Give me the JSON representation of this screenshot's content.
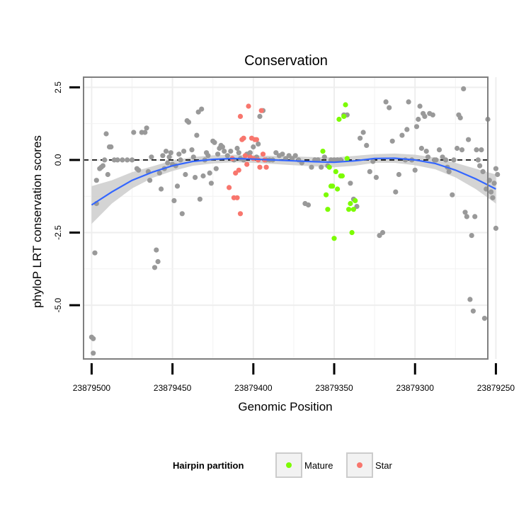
{
  "chart_data": {
    "type": "scatter",
    "title": "Conservation",
    "xlabel": "Genomic Position",
    "ylabel": "phyloP LRT conservation scores",
    "x_reversed": true,
    "xlim": [
      23879505,
      23879255
    ],
    "ylim": [
      -6.85,
      2.85
    ],
    "xticks": [
      23879500,
      23879450,
      23879400,
      23879350,
      23879300,
      23879250
    ],
    "xtick_labels": [
      "23879500",
      "23879450",
      "23879400",
      "23879350",
      "23879300",
      "23879250"
    ],
    "yticks": [
      2.5,
      0.0,
      -2.5,
      -5.0
    ],
    "ytick_labels": [
      "2.5",
      "0.0",
      "-2.5",
      "-5.0"
    ],
    "reference_line": {
      "y": 0,
      "style": "dashed"
    },
    "legend": {
      "title": "Hairpin partition",
      "position": "bottom",
      "entries": [
        {
          "label": "Mature",
          "color": "#7CFC00"
        },
        {
          "label": "Star",
          "color": "#F8766D"
        }
      ]
    },
    "colors": {
      "other": "#999999",
      "Mature": "#7CFC00",
      "Star": "#F8766D",
      "smooth": "#3366FF",
      "ribbon": "#CCCCCC"
    },
    "smooth": {
      "method": "loess",
      "x": [
        23879500,
        23879487.5,
        23879475,
        23879462.5,
        23879450,
        23879437.5,
        23879425,
        23879412.5,
        23879400,
        23879387.5,
        23879375,
        23879362.5,
        23879350,
        23879337.5,
        23879325,
        23879312.5,
        23879300,
        23879287.5,
        23879275,
        23879262.5,
        23879250
      ],
      "y": [
        -1.55,
        -1.1,
        -0.7,
        -0.42,
        -0.2,
        -0.05,
        0.02,
        0.05,
        0.03,
        0.0,
        -0.03,
        -0.06,
        -0.08,
        -0.03,
        0.05,
        0.06,
        0.0,
        -0.12,
        -0.35,
        -0.65,
        -1.0
      ],
      "lower": [
        -2.2,
        -1.5,
        -0.98,
        -0.62,
        -0.38,
        -0.2,
        -0.12,
        -0.08,
        -0.1,
        -0.14,
        -0.18,
        -0.22,
        -0.25,
        -0.2,
        -0.1,
        -0.1,
        -0.18,
        -0.32,
        -0.6,
        -1.0,
        -1.5
      ],
      "upper": [
        -0.9,
        -0.7,
        -0.42,
        -0.22,
        -0.02,
        0.1,
        0.16,
        0.18,
        0.16,
        0.14,
        0.12,
        0.1,
        0.09,
        0.14,
        0.2,
        0.22,
        0.18,
        0.08,
        -0.1,
        -0.3,
        -0.5
      ]
    },
    "series": [
      {
        "name": "other",
        "points": [
          [
            23879500,
            -6.1
          ],
          [
            23879499,
            -6.15
          ],
          [
            23879499,
            -6.65
          ],
          [
            23879498,
            -3.2
          ],
          [
            23879497,
            -1.5
          ],
          [
            23879497,
            -0.7
          ],
          [
            23879495,
            -0.3
          ],
          [
            23879494,
            -0.25
          ],
          [
            23879493,
            -0.2
          ],
          [
            23879492,
            0.0
          ],
          [
            23879491,
            0.9
          ],
          [
            23879490,
            -0.5
          ],
          [
            23879489,
            0.45
          ],
          [
            23879488,
            0.45
          ],
          [
            23879486,
            0.0
          ],
          [
            23879484,
            0.0
          ],
          [
            23879481,
            0.0
          ],
          [
            23879478,
            0.0
          ],
          [
            23879475,
            0.0
          ],
          [
            23879474,
            0.95
          ],
          [
            23879472,
            -0.3
          ],
          [
            23879471,
            -0.35
          ],
          [
            23879469,
            0.95
          ],
          [
            23879467,
            0.95
          ],
          [
            23879466,
            1.1
          ],
          [
            23879465,
            -0.4
          ],
          [
            23879464,
            -0.7
          ],
          [
            23879463,
            0.1
          ],
          [
            23879461,
            -3.7
          ],
          [
            23879460,
            -3.1
          ],
          [
            23879459,
            -3.5
          ],
          [
            23879458,
            -0.45
          ],
          [
            23879457,
            -1.0
          ],
          [
            23879456,
            0.15
          ],
          [
            23879455,
            -0.3
          ],
          [
            23879454,
            0.3
          ],
          [
            23879453,
            -0.1
          ],
          [
            23879452,
            0.1
          ],
          [
            23879451,
            0.25
          ],
          [
            23879450,
            -0.15
          ],
          [
            23879449,
            -1.4
          ],
          [
            23879448,
            -0.2
          ],
          [
            23879447,
            -0.9
          ],
          [
            23879446,
            0.2
          ],
          [
            23879445,
            0.0
          ],
          [
            23879444,
            -1.85
          ],
          [
            23879443,
            0.3
          ],
          [
            23879442,
            -0.5
          ],
          [
            23879441,
            1.35
          ],
          [
            23879440,
            1.3
          ],
          [
            23879438,
            0.35
          ],
          [
            23879437,
            0.1
          ],
          [
            23879436,
            -0.6
          ],
          [
            23879435,
            0.85
          ],
          [
            23879434,
            1.65
          ],
          [
            23879433,
            -1.35
          ],
          [
            23879432,
            1.75
          ],
          [
            23879431,
            -0.55
          ],
          [
            23879430,
            0.0
          ],
          [
            23879429,
            0.25
          ],
          [
            23879428,
            0.15
          ],
          [
            23879427,
            -0.45
          ],
          [
            23879426,
            -0.8
          ],
          [
            23879425,
            0.65
          ],
          [
            23879424,
            0.6
          ],
          [
            23879423,
            -0.3
          ],
          [
            23879422,
            0.2
          ],
          [
            23879421,
            0.4
          ],
          [
            23879420,
            0.5
          ],
          [
            23879419,
            0.45
          ],
          [
            23879418,
            0.3
          ],
          [
            23879416,
            0.15
          ],
          [
            23879414,
            0.3
          ],
          [
            23879412,
            0.0
          ],
          [
            23879410,
            0.4
          ],
          [
            23879409,
            0.25
          ],
          [
            23879408,
            0.05
          ],
          [
            23879406,
            0.0
          ],
          [
            23879404,
            0.2
          ],
          [
            23879402,
            0.25
          ],
          [
            23879400,
            0.45
          ],
          [
            23879398,
            0.1
          ],
          [
            23879397,
            0.55
          ],
          [
            23879396,
            1.5
          ],
          [
            23879394,
            1.7
          ],
          [
            23879392,
            0.0
          ],
          [
            23879390,
            0.0
          ],
          [
            23879388,
            0.0
          ],
          [
            23879386,
            0.25
          ],
          [
            23879384,
            0.15
          ],
          [
            23879382,
            0.2
          ],
          [
            23879380,
            0.05
          ],
          [
            23879378,
            0.15
          ],
          [
            23879376,
            0.05
          ],
          [
            23879374,
            0.15
          ],
          [
            23879372,
            0.0
          ],
          [
            23879370,
            -0.1
          ],
          [
            23879368,
            -1.5
          ],
          [
            23879366,
            -1.55
          ],
          [
            23879364,
            -0.25
          ],
          [
            23879362,
            0.0
          ],
          [
            23879360,
            0.0
          ],
          [
            23879358,
            -0.25
          ],
          [
            23879356,
            0.1
          ],
          [
            23879354,
            -0.2
          ],
          [
            23879352,
            0.0
          ],
          [
            23879350,
            0.0
          ],
          [
            23879348,
            0.0
          ],
          [
            23879346,
            0.0
          ],
          [
            23879344,
            1.55
          ],
          [
            23879342,
            1.55
          ],
          [
            23879340,
            -0.8
          ],
          [
            23879338,
            -1.35
          ],
          [
            23879336,
            -1.6
          ],
          [
            23879334,
            0.75
          ],
          [
            23879332,
            0.95
          ],
          [
            23879330,
            0.5
          ],
          [
            23879328,
            -0.4
          ],
          [
            23879326,
            -0.05
          ],
          [
            23879324,
            -0.6
          ],
          [
            23879322,
            -2.6
          ],
          [
            23879320,
            -2.5
          ],
          [
            23879318,
            2.0
          ],
          [
            23879316,
            1.8
          ],
          [
            23879314,
            0.65
          ],
          [
            23879312,
            -1.1
          ],
          [
            23879310,
            -0.5
          ],
          [
            23879308,
            0.85
          ],
          [
            23879306,
            0.0
          ],
          [
            23879305,
            1.05
          ],
          [
            23879304,
            2.0
          ],
          [
            23879302,
            0.0
          ],
          [
            23879300,
            -0.35
          ],
          [
            23879299,
            1.15
          ],
          [
            23879298,
            1.4
          ],
          [
            23879297,
            1.85
          ],
          [
            23879296,
            0.4
          ],
          [
            23879295,
            1.6
          ],
          [
            23879294,
            1.5
          ],
          [
            23879293,
            0.3
          ],
          [
            23879292,
            0.1
          ],
          [
            23879291,
            1.6
          ],
          [
            23879289,
            1.55
          ],
          [
            23879288,
            0.0
          ],
          [
            23879287,
            0.0
          ],
          [
            23879285,
            0.35
          ],
          [
            23879283,
            0.1
          ],
          [
            23879281,
            0.0
          ],
          [
            23879280,
            -0.25
          ],
          [
            23879279,
            -0.4
          ],
          [
            23879277,
            -1.2
          ],
          [
            23879276,
            0.0
          ],
          [
            23879274,
            0.4
          ],
          [
            23879273,
            1.55
          ],
          [
            23879272,
            1.45
          ],
          [
            23879271,
            0.35
          ],
          [
            23879270,
            2.45
          ],
          [
            23879269,
            -1.8
          ],
          [
            23879268,
            -1.95
          ],
          [
            23879267,
            0.7
          ],
          [
            23879266,
            -4.8
          ],
          [
            23879265,
            -2.6
          ],
          [
            23879264,
            -5.2
          ],
          [
            23879263,
            -1.95
          ],
          [
            23879262,
            0.35
          ],
          [
            23879261,
            0.0
          ],
          [
            23879260,
            -0.2
          ],
          [
            23879259,
            0.35
          ],
          [
            23879258,
            -0.4
          ],
          [
            23879257,
            -5.45
          ],
          [
            23879256,
            -1.0
          ],
          [
            23879255,
            1.4
          ],
          [
            23879254,
            -0.7
          ],
          [
            23879253,
            -1.1
          ],
          [
            23879252,
            -1.3
          ],
          [
            23879251,
            -0.8
          ],
          [
            23879250,
            -2.35
          ],
          [
            23879250,
            -0.3
          ],
          [
            23879249,
            -0.5
          ]
        ]
      },
      {
        "name": "Star",
        "points": [
          [
            23879415,
            -0.95
          ],
          [
            23879413,
            0.05
          ],
          [
            23879412,
            -1.3
          ],
          [
            23879411,
            -0.45
          ],
          [
            23879410,
            -1.3
          ],
          [
            23879409,
            -0.35
          ],
          [
            23879408,
            1.5
          ],
          [
            23879408,
            -1.85
          ],
          [
            23879407,
            0.7
          ],
          [
            23879406,
            0.75
          ],
          [
            23879405,
            0.15
          ],
          [
            23879404,
            -0.15
          ],
          [
            23879403,
            1.85
          ],
          [
            23879402,
            0.1
          ],
          [
            23879401,
            0.75
          ],
          [
            23879400,
            0.05
          ],
          [
            23879399,
            0.7
          ],
          [
            23879398,
            0.7
          ],
          [
            23879397,
            0.0
          ],
          [
            23879396,
            -0.25
          ],
          [
            23879395,
            1.7
          ],
          [
            23879394,
            0.2
          ],
          [
            23879393,
            0.0
          ],
          [
            23879392,
            -0.25
          ]
        ]
      },
      {
        "name": "Mature",
        "points": [
          [
            23879357,
            0.3
          ],
          [
            23879355,
            -1.2
          ],
          [
            23879354,
            -1.7
          ],
          [
            23879353,
            -0.25
          ],
          [
            23879352,
            -0.9
          ],
          [
            23879351,
            -0.9
          ],
          [
            23879350,
            -2.7
          ],
          [
            23879349,
            -0.4
          ],
          [
            23879348,
            -1.0
          ],
          [
            23879347,
            1.4
          ],
          [
            23879346,
            -0.55
          ],
          [
            23879345,
            -0.55
          ],
          [
            23879344,
            1.5
          ],
          [
            23879343,
            1.9
          ],
          [
            23879342,
            0.05
          ],
          [
            23879341,
            -1.7
          ],
          [
            23879340,
            -1.5
          ],
          [
            23879339,
            -2.5
          ],
          [
            23879338,
            -1.7
          ],
          [
            23879337,
            -1.4
          ]
        ]
      }
    ]
  }
}
